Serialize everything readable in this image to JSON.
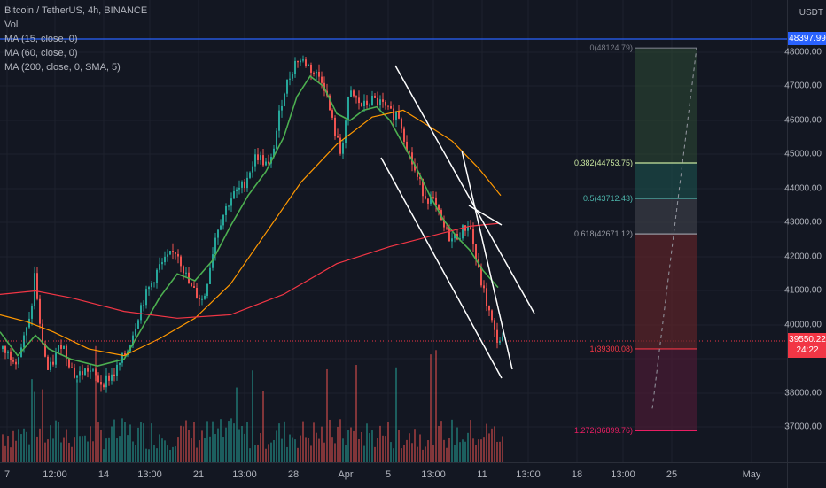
{
  "header": {
    "symbol": "Bitcoin / TetherUS, 4h, BINANCE",
    "indicators": [
      "Vol",
      "MA (15, close, 0)",
      "MA (60, close, 0)",
      "MA (200, close, 0, SMA, 5)"
    ]
  },
  "price_axis": {
    "unit": "USDT",
    "ticks": [
      "48000.00",
      "47000.00",
      "46000.00",
      "45000.00",
      "44000.00",
      "43000.00",
      "42000.00",
      "41000.00",
      "40000.00",
      "38000.00",
      "37000.00"
    ],
    "tick_values": [
      48000,
      47000,
      46000,
      45000,
      44000,
      43000,
      42000,
      41000,
      40000,
      38000,
      37000
    ],
    "top_marker": "48397.99",
    "current_price": "39550.22",
    "countdown": "24:22"
  },
  "time_axis": {
    "ticks": [
      "7",
      "12:00",
      "14",
      "13:00",
      "21",
      "13:00",
      "28",
      "Apr",
      "5",
      "13:00",
      "11",
      "13:00",
      "18",
      "13:00",
      "25",
      "May"
    ]
  },
  "fib_levels": [
    {
      "label": "0(48124.79)",
      "value": 48124.79,
      "color": "#787b86"
    },
    {
      "label": "0.382(44753.75)",
      "value": 44753.75,
      "color": "#c8e6a0"
    },
    {
      "label": "0.5(43712.43)",
      "value": 43712.43,
      "color": "#4db6ac"
    },
    {
      "label": "0.618(42671.12)",
      "value": 42671.12,
      "color": "#9598a1"
    },
    {
      "label": "1(39300.08)",
      "value": 39300.08,
      "color": "#f23645"
    },
    {
      "label": "1.272(36899.76)",
      "value": 36899.76,
      "color": "#e91e63"
    }
  ],
  "colors": {
    "background": "#131722",
    "up": "#26a69a",
    "down": "#ef5350",
    "ma15": "#4caf50",
    "ma60": "#ff9800",
    "ma200": "#f23645",
    "marker_line": "#2962ff"
  }
}
